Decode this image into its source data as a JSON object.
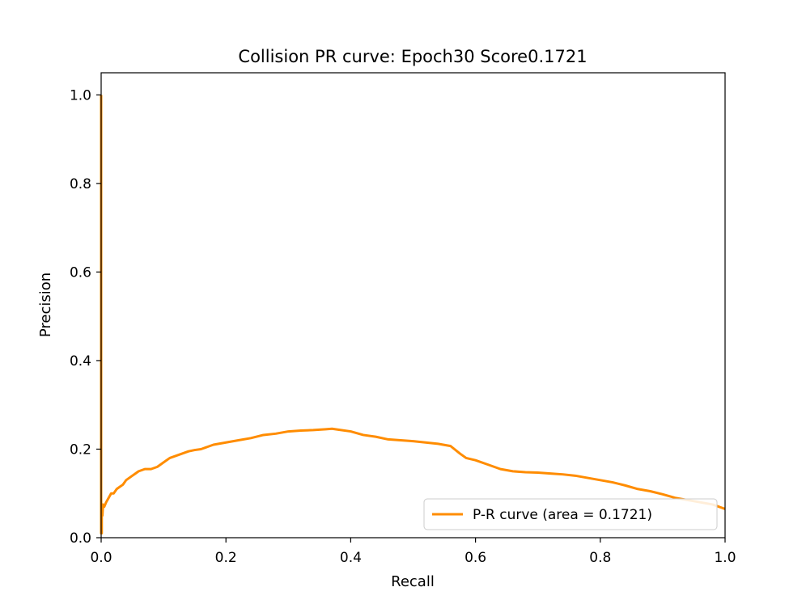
{
  "chart_data": {
    "type": "line",
    "title": "Collision PR curve: Epoch30 Score0.1721",
    "xlabel": "Recall",
    "ylabel": "Precision",
    "xlim": [
      0.0,
      1.0
    ],
    "ylim": [
      0.0,
      1.05
    ],
    "x_ticks": [
      "0.0",
      "0.2",
      "0.4",
      "0.6",
      "0.8",
      "1.0"
    ],
    "y_ticks": [
      "0.0",
      "0.2",
      "0.4",
      "0.6",
      "0.8",
      "1.0"
    ],
    "grid": false,
    "legend_position": "lower-right",
    "series": [
      {
        "name": "P-R curve (area = 0.1721)",
        "color": "#ff8c00",
        "x": [
          0.0,
          0.0,
          0.001,
          0.001,
          0.002,
          0.003,
          0.005,
          0.008,
          0.012,
          0.016,
          0.02,
          0.025,
          0.03,
          0.035,
          0.04,
          0.045,
          0.05,
          0.055,
          0.06,
          0.07,
          0.08,
          0.09,
          0.1,
          0.11,
          0.12,
          0.13,
          0.14,
          0.15,
          0.16,
          0.17,
          0.18,
          0.2,
          0.22,
          0.24,
          0.26,
          0.28,
          0.3,
          0.32,
          0.34,
          0.36,
          0.37,
          0.38,
          0.4,
          0.42,
          0.44,
          0.46,
          0.48,
          0.5,
          0.52,
          0.54,
          0.56,
          0.575,
          0.585,
          0.6,
          0.62,
          0.64,
          0.66,
          0.68,
          0.7,
          0.72,
          0.74,
          0.76,
          0.78,
          0.8,
          0.82,
          0.84,
          0.86,
          0.88,
          0.9,
          0.92,
          0.94,
          0.96,
          0.98,
          1.0
        ],
        "y": [
          1.0,
          0.01,
          0.01,
          0.07,
          0.05,
          0.075,
          0.07,
          0.08,
          0.09,
          0.1,
          0.1,
          0.11,
          0.115,
          0.12,
          0.13,
          0.135,
          0.14,
          0.145,
          0.15,
          0.155,
          0.155,
          0.16,
          0.17,
          0.18,
          0.185,
          0.19,
          0.195,
          0.198,
          0.2,
          0.205,
          0.21,
          0.215,
          0.22,
          0.225,
          0.232,
          0.235,
          0.24,
          0.242,
          0.243,
          0.245,
          0.246,
          0.244,
          0.24,
          0.232,
          0.228,
          0.222,
          0.22,
          0.218,
          0.215,
          0.212,
          0.207,
          0.19,
          0.18,
          0.175,
          0.165,
          0.155,
          0.15,
          0.148,
          0.147,
          0.145,
          0.143,
          0.14,
          0.135,
          0.13,
          0.125,
          0.118,
          0.11,
          0.105,
          0.098,
          0.09,
          0.085,
          0.08,
          0.075,
          0.065
        ]
      }
    ]
  }
}
